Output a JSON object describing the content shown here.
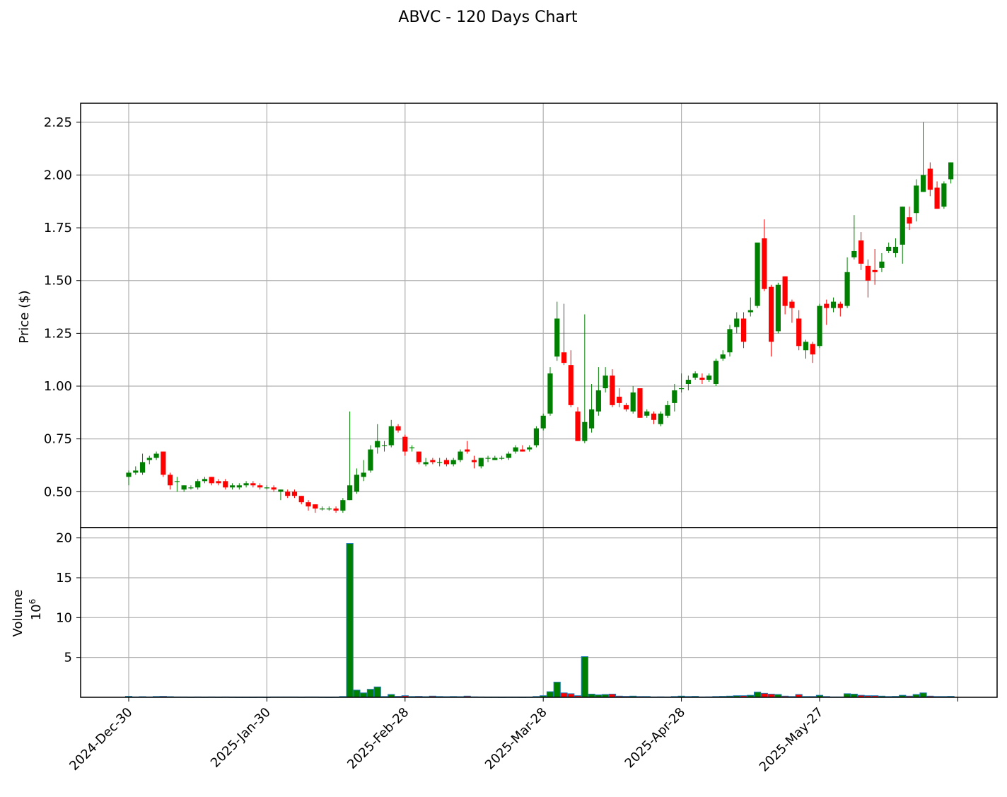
{
  "chart_data": {
    "type": "candlestick",
    "title": "ABVC - 120 Days Chart",
    "price_ylabel": "Price ($)",
    "volume_ylabel": "Volume",
    "volume_multiplier_label": "10",
    "volume_multiplier_exp": "6",
    "price_ylim": [
      0.33,
      2.34
    ],
    "volume_ylim": [
      0,
      21.3
    ],
    "price_ticks": [
      "0.50",
      "0.75",
      "1.00",
      "1.25",
      "1.50",
      "1.75",
      "2.00",
      "2.25"
    ],
    "volume_ticks": [
      "5",
      "10",
      "15",
      "20"
    ],
    "x_ticks": [
      {
        "label": "2024-Dec-30",
        "index": 0
      },
      {
        "label": "2025-Jan-30",
        "index": 20
      },
      {
        "label": "2025-Feb-28",
        "index": 40
      },
      {
        "label": "2025-Mar-28",
        "index": 60
      },
      {
        "label": "2025-Apr-28",
        "index": 80
      },
      {
        "label": "2025-May-27",
        "index": 100
      },
      {
        "label": "",
        "index": 120
      }
    ],
    "grid": true,
    "colors": {
      "up": "#008000",
      "down": "#ff0000",
      "volume_edge": "#1f77b4",
      "grid": "#b0b0b0"
    },
    "ohlcv": [
      [
        0.57,
        0.6,
        0.53,
        0.59,
        0.12
      ],
      [
        0.59,
        0.62,
        0.58,
        0.6,
        0.05
      ],
      [
        0.59,
        0.68,
        0.58,
        0.64,
        0.08
      ],
      [
        0.65,
        0.67,
        0.63,
        0.66,
        0.05
      ],
      [
        0.66,
        0.69,
        0.65,
        0.68,
        0.1
      ],
      [
        0.69,
        0.69,
        0.57,
        0.58,
        0.12
      ],
      [
        0.58,
        0.59,
        0.51,
        0.53,
        0.08
      ],
      [
        0.55,
        0.57,
        0.5,
        0.55,
        0.05
      ],
      [
        0.51,
        0.53,
        0.5,
        0.53,
        0.05
      ],
      [
        0.52,
        0.53,
        0.51,
        0.52,
        0.04
      ],
      [
        0.52,
        0.56,
        0.51,
        0.55,
        0.05
      ],
      [
        0.55,
        0.57,
        0.54,
        0.56,
        0.04
      ],
      [
        0.57,
        0.57,
        0.53,
        0.54,
        0.05
      ],
      [
        0.55,
        0.56,
        0.53,
        0.54,
        0.04
      ],
      [
        0.55,
        0.56,
        0.51,
        0.52,
        0.05
      ],
      [
        0.52,
        0.54,
        0.51,
        0.53,
        0.04
      ],
      [
        0.52,
        0.54,
        0.51,
        0.53,
        0.03
      ],
      [
        0.53,
        0.55,
        0.52,
        0.54,
        0.03
      ],
      [
        0.54,
        0.55,
        0.52,
        0.53,
        0.03
      ],
      [
        0.53,
        0.54,
        0.51,
        0.52,
        0.04
      ],
      [
        0.52,
        0.53,
        0.51,
        0.52,
        0.03
      ],
      [
        0.52,
        0.53,
        0.5,
        0.51,
        0.05
      ],
      [
        0.5,
        0.51,
        0.46,
        0.51,
        0.05
      ],
      [
        0.5,
        0.51,
        0.47,
        0.48,
        0.05
      ],
      [
        0.5,
        0.51,
        0.47,
        0.48,
        0.05
      ],
      [
        0.48,
        0.48,
        0.44,
        0.45,
        0.04
      ],
      [
        0.45,
        0.46,
        0.41,
        0.43,
        0.05
      ],
      [
        0.44,
        0.44,
        0.4,
        0.42,
        0.05
      ],
      [
        0.42,
        0.43,
        0.41,
        0.42,
        0.04
      ],
      [
        0.42,
        0.43,
        0.41,
        0.42,
        0.03
      ],
      [
        0.42,
        0.43,
        0.4,
        0.41,
        0.04
      ],
      [
        0.41,
        0.47,
        0.4,
        0.46,
        0.1
      ],
      [
        0.46,
        0.88,
        0.46,
        0.53,
        19.3
      ],
      [
        0.5,
        0.61,
        0.49,
        0.58,
        0.9
      ],
      [
        0.57,
        0.65,
        0.55,
        0.59,
        0.55
      ],
      [
        0.6,
        0.72,
        0.59,
        0.7,
        1.0
      ],
      [
        0.71,
        0.82,
        0.68,
        0.74,
        1.3
      ],
      [
        0.72,
        0.74,
        0.69,
        0.72,
        0.1
      ],
      [
        0.72,
        0.84,
        0.71,
        0.81,
        0.35
      ],
      [
        0.81,
        0.82,
        0.78,
        0.79,
        0.12
      ],
      [
        0.76,
        0.77,
        0.67,
        0.69,
        0.2
      ],
      [
        0.71,
        0.72,
        0.69,
        0.71,
        0.1
      ],
      [
        0.69,
        0.69,
        0.63,
        0.64,
        0.12
      ],
      [
        0.63,
        0.66,
        0.62,
        0.64,
        0.08
      ],
      [
        0.65,
        0.66,
        0.63,
        0.64,
        0.15
      ],
      [
        0.64,
        0.66,
        0.62,
        0.64,
        0.1
      ],
      [
        0.65,
        0.66,
        0.62,
        0.63,
        0.08
      ],
      [
        0.63,
        0.66,
        0.62,
        0.65,
        0.1
      ],
      [
        0.65,
        0.7,
        0.64,
        0.69,
        0.08
      ],
      [
        0.7,
        0.74,
        0.68,
        0.69,
        0.15
      ],
      [
        0.65,
        0.67,
        0.61,
        0.64,
        0.06
      ],
      [
        0.62,
        0.66,
        0.61,
        0.66,
        0.05
      ],
      [
        0.66,
        0.67,
        0.64,
        0.66,
        0.04
      ],
      [
        0.65,
        0.67,
        0.65,
        0.66,
        0.04
      ],
      [
        0.66,
        0.67,
        0.65,
        0.66,
        0.03
      ],
      [
        0.66,
        0.69,
        0.65,
        0.68,
        0.04
      ],
      [
        0.69,
        0.72,
        0.68,
        0.71,
        0.04
      ],
      [
        0.7,
        0.72,
        0.69,
        0.69,
        0.03
      ],
      [
        0.7,
        0.72,
        0.69,
        0.71,
        0.04
      ],
      [
        0.72,
        0.81,
        0.71,
        0.8,
        0.1
      ],
      [
        0.8,
        0.87,
        0.79,
        0.86,
        0.2
      ],
      [
        0.87,
        1.09,
        0.86,
        1.06,
        0.7
      ],
      [
        1.14,
        1.4,
        1.12,
        1.32,
        1.9
      ],
      [
        1.16,
        1.39,
        1.1,
        1.11,
        0.55
      ],
      [
        1.1,
        1.17,
        0.9,
        0.91,
        0.45
      ],
      [
        0.88,
        0.9,
        0.74,
        0.74,
        0.2
      ],
      [
        0.74,
        1.34,
        0.73,
        0.83,
        5.1
      ],
      [
        0.8,
        1.01,
        0.78,
        0.89,
        0.4
      ],
      [
        0.88,
        1.09,
        0.86,
        0.98,
        0.3
      ],
      [
        0.99,
        1.09,
        0.97,
        1.05,
        0.35
      ],
      [
        1.05,
        1.08,
        0.9,
        0.91,
        0.4
      ],
      [
        0.95,
        0.99,
        0.9,
        0.92,
        0.15
      ],
      [
        0.91,
        0.92,
        0.88,
        0.89,
        0.12
      ],
      [
        0.88,
        1.0,
        0.87,
        0.97,
        0.15
      ],
      [
        0.99,
        0.99,
        0.85,
        0.85,
        0.1
      ],
      [
        0.86,
        0.89,
        0.85,
        0.88,
        0.1
      ],
      [
        0.87,
        0.88,
        0.82,
        0.84,
        0.05
      ],
      [
        0.82,
        0.88,
        0.81,
        0.87,
        0.06
      ],
      [
        0.86,
        0.93,
        0.85,
        0.91,
        0.05
      ],
      [
        0.92,
        1.01,
        0.88,
        0.98,
        0.1
      ],
      [
        0.99,
        1.06,
        0.97,
        0.99,
        0.15
      ],
      [
        1.01,
        1.05,
        0.98,
        1.03,
        0.1
      ],
      [
        1.04,
        1.07,
        1.03,
        1.06,
        0.12
      ],
      [
        1.04,
        1.06,
        1.01,
        1.03,
        0.05
      ],
      [
        1.03,
        1.06,
        1.02,
        1.05,
        0.06
      ],
      [
        1.01,
        1.13,
        1.0,
        1.12,
        0.1
      ],
      [
        1.13,
        1.17,
        1.12,
        1.15,
        0.12
      ],
      [
        1.16,
        1.29,
        1.14,
        1.27,
        0.15
      ],
      [
        1.28,
        1.35,
        1.25,
        1.32,
        0.2
      ],
      [
        1.32,
        1.35,
        1.18,
        1.21,
        0.2
      ],
      [
        1.35,
        1.42,
        1.33,
        1.36,
        0.25
      ],
      [
        1.38,
        1.68,
        1.37,
        1.68,
        0.65
      ],
      [
        1.7,
        1.79,
        1.45,
        1.46,
        0.5
      ],
      [
        1.47,
        1.48,
        1.14,
        1.21,
        0.4
      ],
      [
        1.26,
        1.49,
        1.25,
        1.48,
        0.35
      ],
      [
        1.52,
        1.52,
        1.34,
        1.38,
        0.15
      ],
      [
        1.4,
        1.41,
        1.3,
        1.37,
        0.1
      ],
      [
        1.32,
        1.36,
        1.17,
        1.19,
        0.35
      ],
      [
        1.17,
        1.22,
        1.13,
        1.21,
        0.1
      ],
      [
        1.2,
        1.21,
        1.11,
        1.15,
        0.1
      ],
      [
        1.19,
        1.39,
        1.18,
        1.38,
        0.25
      ],
      [
        1.39,
        1.41,
        1.29,
        1.37,
        0.1
      ],
      [
        1.37,
        1.42,
        1.35,
        1.4,
        0.05
      ],
      [
        1.39,
        1.4,
        1.33,
        1.37,
        0.05
      ],
      [
        1.38,
        1.61,
        1.37,
        1.54,
        0.45
      ],
      [
        1.61,
        1.81,
        1.6,
        1.64,
        0.4
      ],
      [
        1.69,
        1.73,
        1.55,
        1.58,
        0.25
      ],
      [
        1.57,
        1.6,
        1.42,
        1.5,
        0.2
      ],
      [
        1.55,
        1.65,
        1.48,
        1.54,
        0.2
      ],
      [
        1.56,
        1.63,
        1.54,
        1.59,
        0.15
      ],
      [
        1.64,
        1.68,
        1.63,
        1.66,
        0.1
      ],
      [
        1.63,
        1.7,
        1.61,
        1.66,
        0.12
      ],
      [
        1.67,
        1.85,
        1.58,
        1.85,
        0.25
      ],
      [
        1.8,
        1.85,
        1.74,
        1.77,
        0.15
      ],
      [
        1.82,
        1.98,
        1.78,
        1.95,
        0.35
      ],
      [
        1.92,
        2.25,
        1.92,
        2.0,
        0.55
      ],
      [
        2.03,
        2.06,
        1.9,
        1.93,
        0.15
      ],
      [
        1.94,
        1.97,
        1.84,
        1.84,
        0.1
      ],
      [
        1.85,
        1.97,
        1.84,
        1.96,
        0.1
      ],
      [
        1.98,
        2.06,
        1.96,
        2.06,
        0.12
      ]
    ]
  }
}
